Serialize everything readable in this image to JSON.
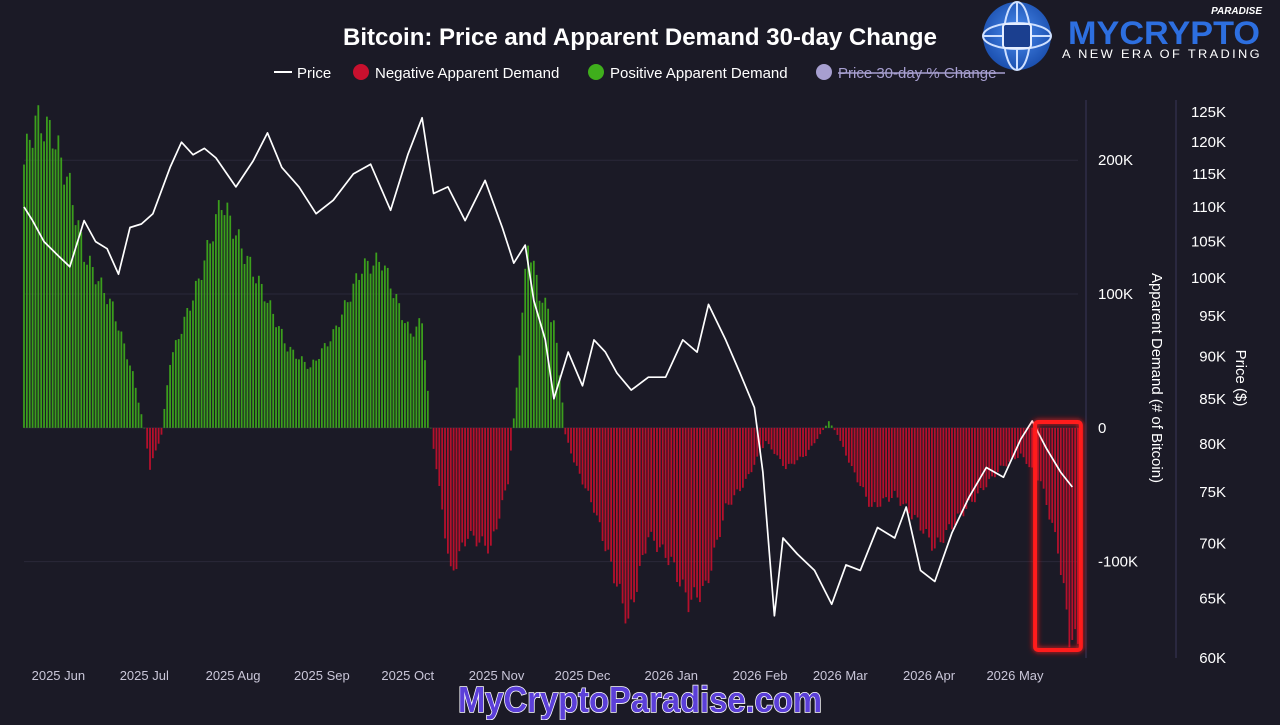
{
  "logo": {
    "brand": "MYCRYPTO",
    "brand_small": "PARADISE",
    "tagline": "A NEW ERA OF TRADING"
  },
  "watermark": "MyCryptoParadise.com",
  "colors": {
    "background": "#1b1a26",
    "price_line": "#ffffff",
    "negative": "#c8102e",
    "positive": "#3fae1c",
    "disabled_legend": "#a79fd0",
    "highlight_box": "#ff1a1a",
    "watermark_fill": "#5b3fd8",
    "logo_blue": "#2d6fe0"
  },
  "chart_data": {
    "type": "bar",
    "title": "Bitcoin: Price and Apparent Demand 30-day Change",
    "legend": {
      "placement": "top-center",
      "items": [
        {
          "label": "Price",
          "style": "line",
          "color": "#ffffff",
          "enabled": true
        },
        {
          "label": "Negative Apparent Demand",
          "style": "dot",
          "color": "#c8102e",
          "enabled": true
        },
        {
          "label": "Positive Apparent Demand",
          "style": "dot",
          "color": "#3fae1c",
          "enabled": true
        },
        {
          "label": "Price 30-day % Change",
          "style": "dot",
          "color": "#a79fd0",
          "enabled": false
        }
      ]
    },
    "x_axis": {
      "start": "2025-05-20",
      "end": "2026-05-23",
      "tick_labels": [
        {
          "date": "2025-06-01",
          "label": "2025 Jun"
        },
        {
          "date": "2025-07-01",
          "label": "2025 Jul"
        },
        {
          "date": "2025-08-01",
          "label": "2025 Aug"
        },
        {
          "date": "2025-09-01",
          "label": "2025 Sep"
        },
        {
          "date": "2025-10-01",
          "label": "2025 Oct"
        },
        {
          "date": "2025-11-01",
          "label": "2025 Nov"
        },
        {
          "date": "2025-12-01",
          "label": "2025 Dec"
        },
        {
          "date": "2026-01-01",
          "label": "2026 Jan"
        },
        {
          "date": "2026-02-01",
          "label": "2026 Feb"
        },
        {
          "date": "2026-03-01",
          "label": "2026 Mar"
        },
        {
          "date": "2026-04-01",
          "label": "2026 Apr"
        },
        {
          "date": "2026-05-01",
          "label": "2026 May"
        }
      ]
    },
    "y_left": {
      "label": "Apparent Demand (# of Bitcoin)",
      "range": [
        -172000,
        245000
      ],
      "tick_values": [
        200000,
        100000,
        0,
        -100000
      ],
      "tick_labels": [
        "200K",
        "100K",
        "0",
        "-100K"
      ]
    },
    "y_right": {
      "label": "Price ($)",
      "scale": "log",
      "range": [
        60000,
        127000
      ],
      "tick_values": [
        125000,
        120000,
        115000,
        110000,
        105000,
        100000,
        95000,
        90000,
        85000,
        80000,
        75000,
        70000,
        65000,
        60000
      ],
      "tick_labels": [
        "125K",
        "120K",
        "115K",
        "110K",
        "105K",
        "100K",
        "95K",
        "90K",
        "85K",
        "80K",
        "75K",
        "70K",
        "65K",
        "60K"
      ]
    },
    "demand_anchors": [
      [
        "2025-05-20",
        200000
      ],
      [
        "2025-05-24",
        230000
      ],
      [
        "2025-05-30",
        220000
      ],
      [
        "2025-06-05",
        180000
      ],
      [
        "2025-06-10",
        130000
      ],
      [
        "2025-06-20",
        90000
      ],
      [
        "2025-06-27",
        40000
      ],
      [
        "2025-07-01",
        0
      ],
      [
        "2025-07-03",
        -30000
      ],
      [
        "2025-07-07",
        -5000
      ],
      [
        "2025-07-10",
        50000
      ],
      [
        "2025-07-20",
        110000
      ],
      [
        "2025-07-28",
        170000
      ],
      [
        "2025-08-05",
        130000
      ],
      [
        "2025-08-12",
        100000
      ],
      [
        "2025-08-20",
        60000
      ],
      [
        "2025-08-28",
        45000
      ],
      [
        "2025-09-05",
        70000
      ],
      [
        "2025-09-15",
        120000
      ],
      [
        "2025-09-22",
        125000
      ],
      [
        "2025-09-28",
        90000
      ],
      [
        "2025-10-02",
        70000
      ],
      [
        "2025-10-06",
        80000
      ],
      [
        "2025-10-09",
        0
      ],
      [
        "2025-10-11",
        -30000
      ],
      [
        "2025-10-16",
        -110000
      ],
      [
        "2025-10-22",
        -80000
      ],
      [
        "2025-10-30",
        -90000
      ],
      [
        "2025-11-05",
        -40000
      ],
      [
        "2025-11-08",
        30000
      ],
      [
        "2025-11-12",
        140000
      ],
      [
        "2025-11-16",
        100000
      ],
      [
        "2025-11-21",
        80000
      ],
      [
        "2025-11-24",
        20000
      ],
      [
        "2025-11-25",
        -5000
      ],
      [
        "2025-11-28",
        -25000
      ],
      [
        "2025-12-05",
        -60000
      ],
      [
        "2025-12-12",
        -110000
      ],
      [
        "2025-12-17",
        -145000
      ],
      [
        "2025-12-24",
        -80000
      ],
      [
        "2026-01-01",
        -100000
      ],
      [
        "2026-01-07",
        -130000
      ],
      [
        "2026-01-13",
        -120000
      ],
      [
        "2026-01-20",
        -60000
      ],
      [
        "2026-01-27",
        -40000
      ],
      [
        "2026-02-03",
        -10000
      ],
      [
        "2026-02-10",
        -30000
      ],
      [
        "2026-02-17",
        -20000
      ],
      [
        "2026-02-22",
        -5000
      ],
      [
        "2026-02-25",
        5000
      ],
      [
        "2026-02-28",
        -5000
      ],
      [
        "2026-03-05",
        -30000
      ],
      [
        "2026-03-12",
        -60000
      ],
      [
        "2026-03-20",
        -50000
      ],
      [
        "2026-03-28",
        -70000
      ],
      [
        "2026-04-03",
        -90000
      ],
      [
        "2026-04-10",
        -70000
      ],
      [
        "2026-04-18",
        -50000
      ],
      [
        "2026-04-26",
        -30000
      ],
      [
        "2026-05-03",
        -20000
      ],
      [
        "2026-05-10",
        -40000
      ],
      [
        "2026-05-16",
        -90000
      ],
      [
        "2026-05-20",
        -155000
      ],
      [
        "2026-05-22",
        -160000
      ]
    ],
    "price_anchors": [
      [
        "2025-05-20",
        110000
      ],
      [
        "2025-05-23",
        108000
      ],
      [
        "2025-05-27",
        105000
      ],
      [
        "2025-06-01",
        103000
      ],
      [
        "2025-06-05",
        101500
      ],
      [
        "2025-06-10",
        108000
      ],
      [
        "2025-06-14",
        105000
      ],
      [
        "2025-06-18",
        104000
      ],
      [
        "2025-06-22",
        100500
      ],
      [
        "2025-06-26",
        107000
      ],
      [
        "2025-06-30",
        107500
      ],
      [
        "2025-07-04",
        109000
      ],
      [
        "2025-07-10",
        116000
      ],
      [
        "2025-07-14",
        120000
      ],
      [
        "2025-07-18",
        118000
      ],
      [
        "2025-07-22",
        119000
      ],
      [
        "2025-07-26",
        117500
      ],
      [
        "2025-08-02",
        113000
      ],
      [
        "2025-08-08",
        117000
      ],
      [
        "2025-08-13",
        121500
      ],
      [
        "2025-08-18",
        116000
      ],
      [
        "2025-08-24",
        113000
      ],
      [
        "2025-08-30",
        109000
      ],
      [
        "2025-09-05",
        111000
      ],
      [
        "2025-09-12",
        115000
      ],
      [
        "2025-09-18",
        116500
      ],
      [
        "2025-09-25",
        109500
      ],
      [
        "2025-10-01",
        118000
      ],
      [
        "2025-10-06",
        124000
      ],
      [
        "2025-10-10",
        112000
      ],
      [
        "2025-10-15",
        113000
      ],
      [
        "2025-10-21",
        108000
      ],
      [
        "2025-10-28",
        114000
      ],
      [
        "2025-11-03",
        107000
      ],
      [
        "2025-11-07",
        102000
      ],
      [
        "2025-11-11",
        104500
      ],
      [
        "2025-11-14",
        97000
      ],
      [
        "2025-11-18",
        92000
      ],
      [
        "2025-11-21",
        85000
      ],
      [
        "2025-11-26",
        90500
      ],
      [
        "2025-12-01",
        86500
      ],
      [
        "2025-12-05",
        92000
      ],
      [
        "2025-12-09",
        90500
      ],
      [
        "2025-12-13",
        88000
      ],
      [
        "2025-12-18",
        86000
      ],
      [
        "2025-12-24",
        87500
      ],
      [
        "2025-12-30",
        87500
      ],
      [
        "2026-01-05",
        92000
      ],
      [
        "2026-01-10",
        90500
      ],
      [
        "2026-01-14",
        96500
      ],
      [
        "2026-01-20",
        92000
      ],
      [
        "2026-01-25",
        88000
      ],
      [
        "2026-01-30",
        84000
      ],
      [
        "2026-02-02",
        77000
      ],
      [
        "2026-02-06",
        63500
      ],
      [
        "2026-02-09",
        70500
      ],
      [
        "2026-02-14",
        69000
      ],
      [
        "2026-02-20",
        67500
      ],
      [
        "2026-02-26",
        64500
      ],
      [
        "2026-03-03",
        68000
      ],
      [
        "2026-03-08",
        67500
      ],
      [
        "2026-03-14",
        71500
      ],
      [
        "2026-03-20",
        70500
      ],
      [
        "2026-03-24",
        73500
      ],
      [
        "2026-03-29",
        67500
      ],
      [
        "2026-04-03",
        66500
      ],
      [
        "2026-04-09",
        71000
      ],
      [
        "2026-04-15",
        74500
      ],
      [
        "2026-04-21",
        77500
      ],
      [
        "2026-04-27",
        76500
      ],
      [
        "2026-05-03",
        80500
      ],
      [
        "2026-05-07",
        82500
      ],
      [
        "2026-05-12",
        79500
      ],
      [
        "2026-05-17",
        77000
      ],
      [
        "2026-05-21",
        75500
      ]
    ],
    "highlight": {
      "from": "2026-05-08",
      "to": "2026-05-24",
      "color": "#ff1a1a"
    }
  }
}
